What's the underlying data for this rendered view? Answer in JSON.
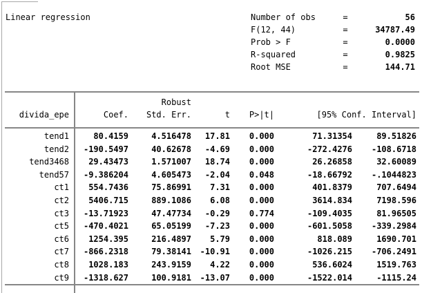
{
  "report": {
    "title": "Linear regression",
    "stats": [
      {
        "label": "Number of obs",
        "eq": "=",
        "value": "56"
      },
      {
        "label": "F(12, 44)",
        "eq": "=",
        "value": "34787.49"
      },
      {
        "label": "Prob > F",
        "eq": "=",
        "value": "0.0000"
      },
      {
        "label": "R-squared",
        "eq": "=",
        "value": "0.9825"
      },
      {
        "label": "Root MSE",
        "eq": "=",
        "value": "144.71"
      }
    ]
  },
  "table": {
    "depvar": "divida_epe",
    "header_overline": "Robust",
    "columns": [
      "Coef.",
      "Std. Err.",
      "t",
      "P>|t|",
      "[95% Conf. Interval]"
    ],
    "rows": [
      {
        "var": "tend1",
        "coef": "80.4159",
        "std_err": "4.516478",
        "t": "17.81",
        "p": "0.000",
        "ci_low": "71.31354",
        "ci_high": "89.51826"
      },
      {
        "var": "tend2",
        "coef": "-190.5497",
        "std_err": "40.62678",
        "t": "-4.69",
        "p": "0.000",
        "ci_low": "-272.4276",
        "ci_high": "-108.6718"
      },
      {
        "var": "tend3468",
        "coef": "29.43473",
        "std_err": "1.571007",
        "t": "18.74",
        "p": "0.000",
        "ci_low": "26.26858",
        "ci_high": "32.60089"
      },
      {
        "var": "tend57",
        "coef": "-9.386204",
        "std_err": "4.605473",
        "t": "-2.04",
        "p": "0.048",
        "ci_low": "-18.66792",
        "ci_high": "-.1044823"
      },
      {
        "var": "ct1",
        "coef": "554.7436",
        "std_err": "75.86991",
        "t": "7.31",
        "p": "0.000",
        "ci_low": "401.8379",
        "ci_high": "707.6494"
      },
      {
        "var": "ct2",
        "coef": "5406.715",
        "std_err": "889.1086",
        "t": "6.08",
        "p": "0.000",
        "ci_low": "3614.834",
        "ci_high": "7198.596"
      },
      {
        "var": "ct3",
        "coef": "-13.71923",
        "std_err": "47.47734",
        "t": "-0.29",
        "p": "0.774",
        "ci_low": "-109.4035",
        "ci_high": "81.96505"
      },
      {
        "var": "ct5",
        "coef": "-470.4021",
        "std_err": "65.05199",
        "t": "-7.23",
        "p": "0.000",
        "ci_low": "-601.5058",
        "ci_high": "-339.2984"
      },
      {
        "var": "ct6",
        "coef": "1254.395",
        "std_err": "216.4897",
        "t": "5.79",
        "p": "0.000",
        "ci_low": "818.089",
        "ci_high": "1690.701"
      },
      {
        "var": "ct7",
        "coef": "-866.2318",
        "std_err": "79.38141",
        "t": "-10.91",
        "p": "0.000",
        "ci_low": "-1026.215",
        "ci_high": "-706.2491"
      },
      {
        "var": "ct8",
        "coef": "1028.183",
        "std_err": "243.9159",
        "t": "4.22",
        "p": "0.000",
        "ci_low": "536.6024",
        "ci_high": "1519.763"
      },
      {
        "var": "ct9",
        "coef": "-1318.627",
        "std_err": "100.9181",
        "t": "-13.07",
        "p": "0.000",
        "ci_low": "-1522.014",
        "ci_high": "-1115.24"
      }
    ]
  },
  "colors": {
    "rule_gray": "#868686",
    "window_border_gray": "#a6a6a6",
    "text": "#000000",
    "background": "#ffffff"
  }
}
